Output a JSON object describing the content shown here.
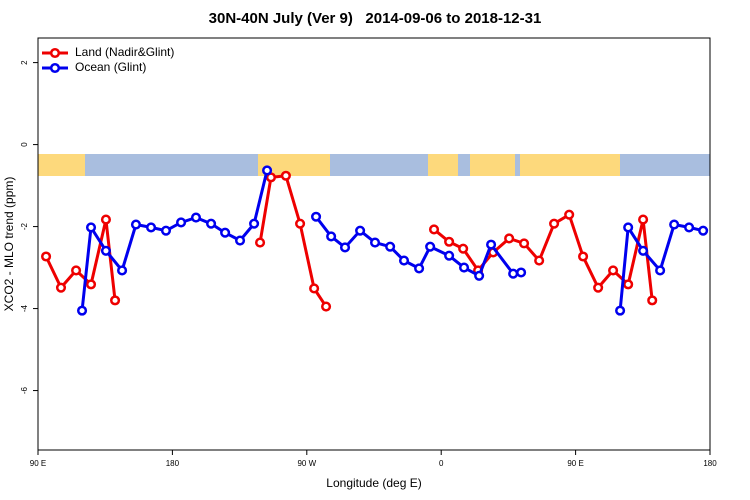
{
  "chart_data": {
    "type": "line",
    "title": "30N-40N July (Ver 9)   2014-09-06 to 2018-12-31",
    "xlabel": "Longitude (deg E)",
    "ylabel": "XCO2 - MLO trend (ppm)",
    "xlim": [
      90,
      540
    ],
    "ylim": [
      -7.45,
      2.6
    ],
    "xticks": [
      {
        "value": 90,
        "label": "90 E"
      },
      180,
      {
        "value": 270,
        "label": "90 W"
      },
      {
        "value": 360,
        "label": "0"
      },
      {
        "value": 450,
        "label": "90 E"
      },
      {
        "value": 540,
        "label": "180"
      }
    ],
    "yticks": [
      -6,
      -4,
      -2,
      0,
      2
    ],
    "legend": "top-left",
    "series": [
      {
        "name": "Land (Nadir&Glint)",
        "color": "#ee0000",
        "x": [
          95.4,
          105.4,
          115.5,
          125.5,
          135.5,
          141.6,
          null,
          238.7,
          246,
          256,
          265.5,
          274.9,
          282.9,
          null,
          355.2,
          365.3,
          374.7,
          384.7,
          394.8,
          405.5,
          415.5,
          425.6,
          435.6,
          445.7,
          455,
          465.1,
          475.1,
          485.2,
          495.2,
          501.3
        ],
        "values": [
          -2.73,
          -3.49,
          -3.07,
          -3.41,
          -1.83,
          -3.8,
          null,
          -2.39,
          -0.8,
          -0.76,
          -1.93,
          -3.51,
          -3.95,
          null,
          -2.07,
          -2.37,
          -2.54,
          -3.07,
          -2.63,
          -2.29,
          -2.41,
          -2.83,
          -1.93,
          -1.71,
          -2.73,
          -3.49,
          -3.07,
          -3.41,
          -1.83,
          -3.8
        ]
      },
      {
        "name": "Ocean (Glint)",
        "color": "#0000ee",
        "x": [
          119.5,
          125.5,
          135.5,
          146.3,
          155.6,
          165.7,
          175.7,
          185.8,
          195.8,
          205.9,
          215.3,
          225.3,
          234.7,
          243.4,
          null,
          276.2,
          286.3,
          295.6,
          305.7,
          315.7,
          325.8,
          335.1,
          345.2,
          352.6,
          365.3,
          375.3,
          385.4,
          393.4,
          408.2,
          413.5,
          null,
          479.8,
          485.2,
          495.2,
          506.6,
          516,
          526,
          535.4
        ],
        "values": [
          -4.05,
          -2.02,
          -2.59,
          -3.07,
          -1.95,
          -2.02,
          -2.1,
          -1.9,
          -1.78,
          -1.93,
          -2.15,
          -2.34,
          -1.93,
          -0.63,
          null,
          -1.76,
          -2.24,
          -2.51,
          -2.1,
          -2.39,
          -2.49,
          -2.83,
          -3.02,
          -2.49,
          -2.71,
          -3.0,
          -3.2,
          -2.44,
          -3.15,
          -3.12,
          null,
          -4.05,
          -2.02,
          -2.59,
          -3.07,
          -1.95,
          -2.02,
          -2.1
        ]
      }
    ]
  }
}
